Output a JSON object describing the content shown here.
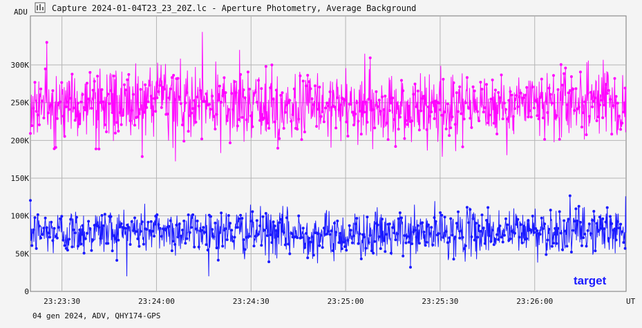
{
  "window": {
    "title": "Capture 2024-01-04T23_23_20Z.lc - Aperture Photometry, Average Background",
    "icon": "lightcurve-app-icon"
  },
  "footer": {
    "info": "04 gen 2024, ADV, QHY174-GPS"
  },
  "chart_data": {
    "type": "line",
    "ylabel": "ADU",
    "xlabel": "UT",
    "ylim": [
      0,
      365000
    ],
    "xlim": [
      "23:23:20",
      "23:26:29"
    ],
    "yticks": [
      {
        "value": 0,
        "label": "0"
      },
      {
        "value": 50000,
        "label": "50K"
      },
      {
        "value": 100000,
        "label": "100K"
      },
      {
        "value": 150000,
        "label": "150K"
      },
      {
        "value": 200000,
        "label": "200K"
      },
      {
        "value": 250000,
        "label": "250K"
      },
      {
        "value": 300000,
        "label": "300K"
      }
    ],
    "xticks": [
      {
        "value": "23:23:30",
        "label": "23:23:30"
      },
      {
        "value": "23:24:00",
        "label": "23:24:00"
      },
      {
        "value": "23:24:30",
        "label": "23:24:30"
      },
      {
        "value": "23:25:00",
        "label": "23:25:00"
      },
      {
        "value": "23:25:30",
        "label": "23:25:30"
      },
      {
        "value": "23:26:00",
        "label": "23:26:00"
      }
    ],
    "grid": true,
    "series": [
      {
        "name": "target",
        "color": "#1a1aff",
        "mean": 78000,
        "spread": 18000,
        "min": 20000,
        "max": 135000,
        "sample_count": 1200
      },
      {
        "color": "#ff00ff",
        "mean": 245000,
        "spread": 28000,
        "min": 165000,
        "max": 347000,
        "sample_count": 1200
      }
    ],
    "legend": {
      "label": "target",
      "placement": "bottom-right"
    }
  }
}
